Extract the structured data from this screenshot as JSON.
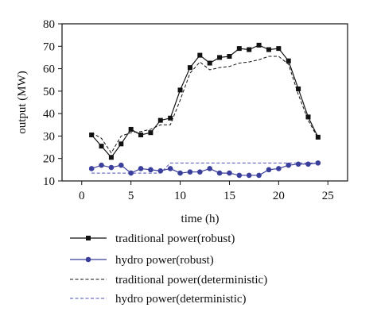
{
  "chart_data": {
    "type": "line",
    "xlabel": "time (h)",
    "ylabel": "output (MW)",
    "xlim": [
      -2,
      27
    ],
    "ylim": [
      10,
      80
    ],
    "xticks": [
      0,
      5,
      10,
      15,
      20,
      25
    ],
    "yticks": [
      10,
      20,
      30,
      40,
      50,
      60,
      70,
      80
    ],
    "grid": false,
    "legend_position": "bottom",
    "x": [
      1,
      2,
      3,
      4,
      5,
      6,
      7,
      8,
      9,
      10,
      11,
      12,
      13,
      14,
      15,
      16,
      17,
      18,
      19,
      20,
      21,
      22,
      23,
      24
    ],
    "series": [
      {
        "name": "traditional power(robust)",
        "style": "solid-square",
        "color": "#111111",
        "values": [
          30.5,
          25.5,
          20.5,
          26.5,
          33,
          30.5,
          31.5,
          37,
          38,
          50.5,
          60.5,
          66,
          62.5,
          65,
          65.5,
          69,
          68.5,
          70.5,
          68.5,
          69,
          63.5,
          51,
          38.5,
          29.5
        ]
      },
      {
        "name": "hydro power(robust)",
        "style": "solid-circle",
        "color": "#3b3f9c",
        "values": [
          15.5,
          17,
          16,
          17,
          13.5,
          15.5,
          15,
          14.5,
          15.5,
          13.5,
          14,
          14,
          15.5,
          13.5,
          13.5,
          12.5,
          12.5,
          12.5,
          15,
          15.5,
          17,
          17.5,
          17.5,
          18
        ]
      },
      {
        "name": "traditional power(deterministic)",
        "style": "dashed",
        "color": "#111111",
        "values": [
          31.5,
          29,
          22.5,
          30,
          31.5,
          32,
          33,
          35,
          35,
          46,
          58,
          63,
          59.5,
          60.5,
          61,
          62.5,
          63,
          64,
          65.5,
          65.5,
          62,
          48.5,
          37,
          29
        ]
      },
      {
        "name": "hydro power(deterministic)",
        "style": "dashed",
        "color": "#4a4fb5",
        "values": [
          13.5,
          13.5,
          13.5,
          13.5,
          13.5,
          13.5,
          13.5,
          13.5,
          18,
          18,
          18,
          18,
          18,
          18,
          18,
          18,
          18,
          18,
          18,
          18,
          18,
          18,
          18,
          18
        ]
      }
    ]
  }
}
